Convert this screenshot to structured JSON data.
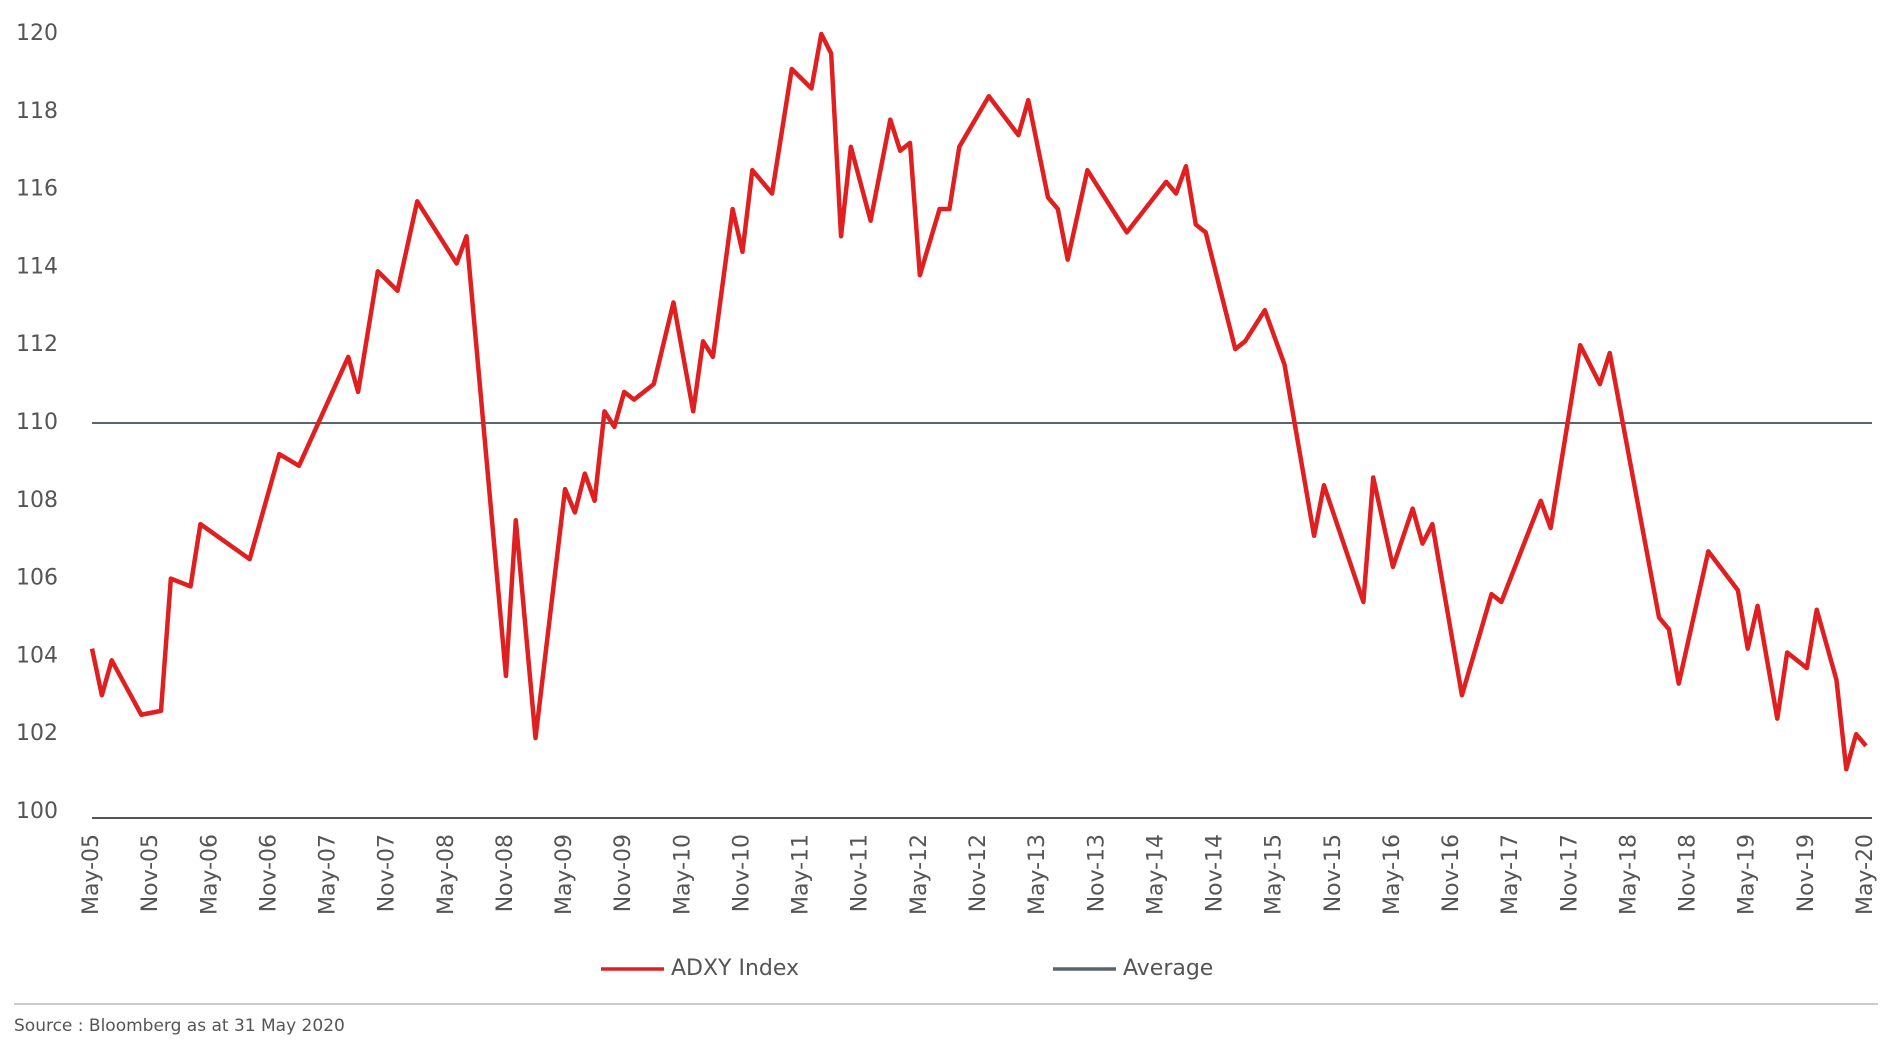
{
  "chart_data": {
    "type": "line",
    "x": [
      "May-05",
      "Jun-05",
      "Jul-05",
      "Oct-05",
      "Dec-05",
      "Jan-06",
      "Mar-06",
      "Apr-06",
      "Sep-06",
      "Dec-06",
      "Feb-07",
      "Jul-07",
      "Aug-07",
      "Oct-07",
      "Dec-07",
      "Feb-08",
      "Jun-08",
      "Jul-08",
      "Nov-08",
      "Dec-08",
      "Feb-09",
      "May-09",
      "Jun-09",
      "Jul-09",
      "Aug-09",
      "Sep-09",
      "Oct-09",
      "Nov-09",
      "Dec-09",
      "Feb-10",
      "Apr-10",
      "Jun-10",
      "Jul-10",
      "Aug-10",
      "Oct-10",
      "Nov-10",
      "Dec-10",
      "Feb-11",
      "Apr-11",
      "Jun-11",
      "Jul-11",
      "Aug-11",
      "Sep-11",
      "Oct-11",
      "Dec-11",
      "Feb-12",
      "Mar-12",
      "Apr-12",
      "May-12",
      "Jul-12",
      "Aug-12",
      "Sep-12",
      "Dec-12",
      "Mar-13",
      "Apr-13",
      "Jun-13",
      "Jul-13",
      "Aug-13",
      "Oct-13",
      "Feb-14",
      "Jun-14",
      "Jul-14",
      "Aug-14",
      "Sep-14",
      "Oct-14",
      "Jan-15",
      "Feb-15",
      "Apr-15",
      "Jun-15",
      "Sep-15",
      "Oct-15",
      "Feb-16",
      "Mar-16",
      "May-16",
      "Jul-16",
      "Aug-16",
      "Sep-16",
      "Dec-16",
      "Mar-17",
      "Apr-17",
      "Aug-17",
      "Sep-17",
      "Dec-17",
      "Feb-18",
      "Mar-18",
      "Aug-18",
      "Sep-18",
      "Oct-18",
      "Jan-19",
      "Apr-19",
      "May-19",
      "Jun-19",
      "Aug-19",
      "Sep-19",
      "Nov-19",
      "Dec-19",
      "Feb-20",
      "Mar-20",
      "Apr-20",
      "May-20"
    ],
    "series": [
      {
        "name": "ADXY Index",
        "color": "#e02020",
        "values": [
          104.2,
          103.0,
          103.9,
          102.5,
          102.6,
          106.0,
          105.8,
          107.4,
          106.5,
          109.2,
          108.9,
          111.7,
          110.8,
          113.9,
          113.4,
          115.7,
          114.1,
          114.8,
          103.5,
          107.5,
          101.9,
          108.3,
          107.7,
          108.7,
          108.0,
          110.3,
          109.9,
          110.8,
          110.6,
          111.0,
          113.1,
          110.3,
          112.1,
          111.7,
          115.5,
          114.4,
          116.5,
          115.9,
          119.1,
          118.6,
          120.0,
          119.5,
          114.8,
          117.1,
          115.2,
          117.8,
          117.0,
          117.2,
          113.8,
          115.5,
          115.5,
          117.1,
          118.4,
          117.4,
          118.3,
          115.8,
          115.5,
          114.2,
          116.5,
          114.9,
          116.2,
          115.9,
          116.6,
          115.1,
          114.9,
          111.9,
          112.1,
          112.9,
          111.5,
          107.1,
          108.4,
          105.4,
          108.6,
          106.3,
          107.8,
          106.9,
          107.4,
          103.0,
          105.6,
          105.4,
          108.0,
          107.3,
          112.0,
          111.0,
          111.8,
          105.0,
          104.7,
          103.3,
          106.7,
          105.7,
          104.2,
          105.3,
          102.4,
          104.1,
          103.7,
          105.2,
          103.4,
          101.1,
          102.0,
          101.7
        ]
      }
    ],
    "average": {
      "name": "Average",
      "color": "#5a6470",
      "value": 110
    },
    "xlim": [
      "May-05",
      "May-20"
    ],
    "xticks": [
      "May-05",
      "Nov-05",
      "May-06",
      "Nov-06",
      "May-07",
      "Nov-07",
      "May-08",
      "Nov-08",
      "May-09",
      "Nov-09",
      "May-10",
      "Nov-10",
      "May-11",
      "Nov-11",
      "May-12",
      "Nov-12",
      "May-13",
      "Nov-13",
      "May-14",
      "Nov-14",
      "May-15",
      "Nov-15",
      "May-16",
      "Nov-16",
      "May-17",
      "Nov-17",
      "May-18",
      "Nov-18",
      "May-19",
      "Nov-19",
      "May-20"
    ],
    "ylim": [
      100,
      120
    ],
    "yticks": [
      100,
      102,
      104,
      106,
      108,
      110,
      112,
      114,
      116,
      118,
      120
    ],
    "source": "Source : Bloomberg as at 31 May 2020"
  }
}
